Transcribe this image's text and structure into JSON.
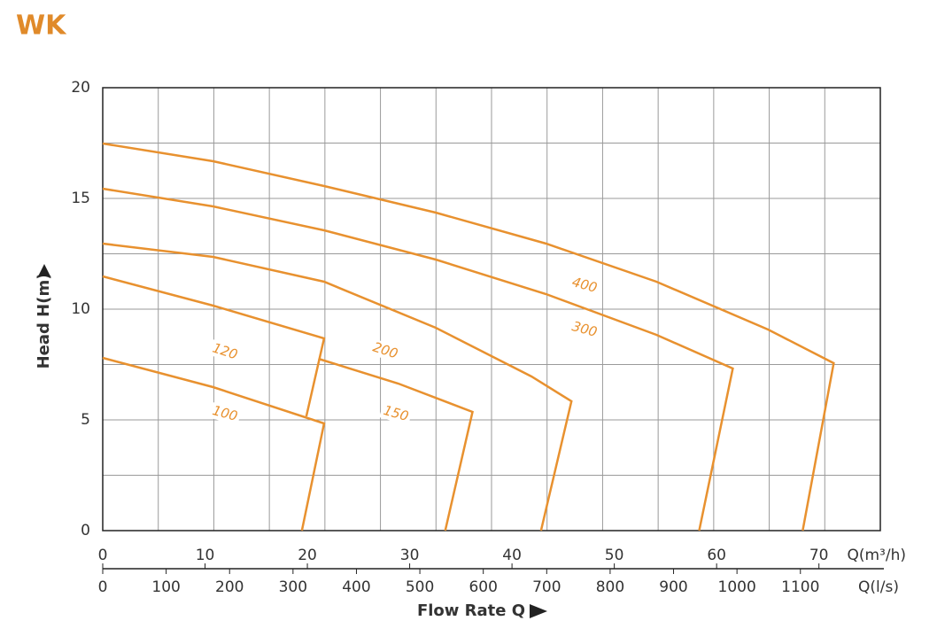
{
  "chart_data": {
    "type": "line",
    "title": "WK",
    "ylabel": "Head H(m)",
    "xlabel": "Flow Rate Q",
    "x_unit": "Q(l/s)",
    "x2_unit": "Q(m³/h)",
    "xlim": [
      0,
      1226
    ],
    "xticks": [
      0,
      100,
      200,
      300,
      400,
      500,
      600,
      700,
      800,
      900,
      1000,
      1100
    ],
    "x2lim": [
      0,
      76
    ],
    "x2ticks": [
      0,
      10,
      20,
      30,
      40,
      50,
      60,
      70
    ],
    "ylim": [
      0,
      20
    ],
    "yticks": [
      0,
      5,
      10,
      15,
      20
    ],
    "y_minor_ticks": [
      2.5,
      7.5,
      12.5,
      17.5
    ],
    "grid": true,
    "series": [
      {
        "name": "400",
        "color": "#e8912f",
        "x": [
          0,
          174,
          349,
          525,
          699,
          873,
          1049,
          1152.5,
          1103.6
        ],
        "values": [
          17.48,
          16.68,
          15.56,
          14.36,
          12.96,
          11.24,
          9.08,
          7.56,
          0
        ]
      },
      {
        "name": "300",
        "color": "#e8912f",
        "x": [
          0,
          174,
          349,
          525,
          699,
          873,
          993.4,
          940.4
        ],
        "values": [
          15.44,
          14.64,
          13.56,
          12.24,
          10.68,
          8.84,
          7.32,
          0
        ]
      },
      {
        "name": "200",
        "color": "#e8912f",
        "x": [
          0,
          174,
          349,
          525,
          676,
          739,
          691
        ],
        "values": [
          12.96,
          12.36,
          11.24,
          9.16,
          6.96,
          5.84,
          0
        ]
      },
      {
        "name": "150",
        "color": "#e8912f",
        "x": [
          340,
          466,
          583,
          540
        ],
        "values": [
          7.76,
          6.64,
          5.36,
          0
        ]
      },
      {
        "name": "120",
        "color": "#e8912f",
        "x": [
          0,
          174,
          349,
          321
        ],
        "values": [
          11.48,
          10.16,
          8.68,
          5.16
        ]
      },
      {
        "name": "100",
        "color": "#e8912f",
        "x": [
          0,
          174,
          349,
          314
        ],
        "values": [
          7.8,
          6.48,
          4.84,
          0
        ]
      }
    ]
  }
}
